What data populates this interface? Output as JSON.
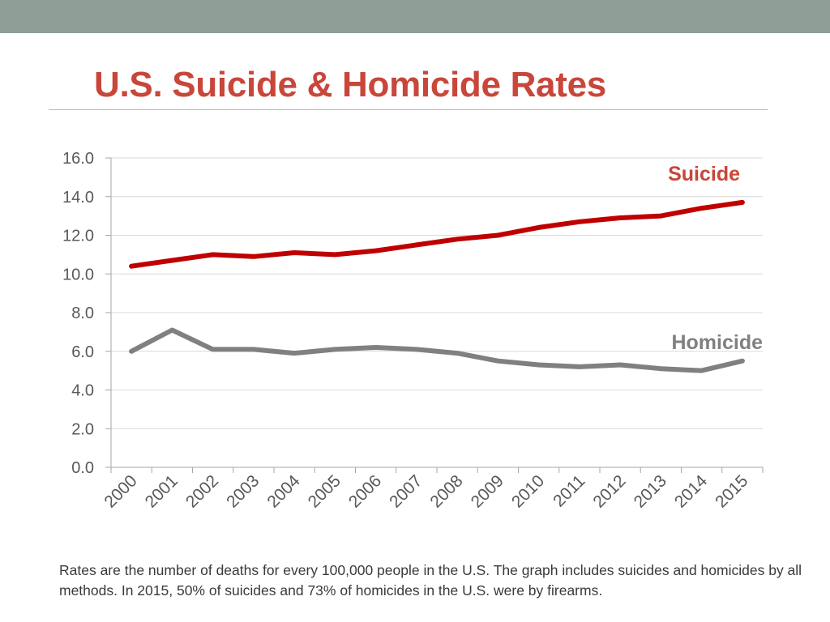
{
  "slide": {
    "title": "U.S. Suicide & Homicide Rates",
    "footnote": "Rates are the number of deaths for every 100,000 people in the U.S. The graph includes suicides and homicides by all methods. In 2015, 50% of suicides and 73% of homicides in the U.S. were by firearms."
  },
  "colors": {
    "top_bar": "#8f9e97",
    "title": "#c8463a",
    "suicide": "#c00000",
    "homicide": "#808080",
    "grid": "#d9d9d9",
    "axis": "#a6a6a6",
    "tick_text": "#595959"
  },
  "chart_data": {
    "type": "line",
    "title": "",
    "xlabel": "",
    "ylabel": "",
    "ylim": [
      0,
      16
    ],
    "y_ticks": [
      "0.0",
      "2.0",
      "4.0",
      "6.0",
      "8.0",
      "10.0",
      "12.0",
      "14.0",
      "16.0"
    ],
    "grid": true,
    "legend": "inline labels at right",
    "categories": [
      "2000",
      "2001",
      "2002",
      "2003",
      "2004",
      "2005",
      "2006",
      "2007",
      "2008",
      "2009",
      "2010",
      "2011",
      "2012",
      "2013",
      "2014",
      "2015"
    ],
    "series": [
      {
        "name": "Suicide",
        "color": "#c00000",
        "values": [
          10.4,
          10.7,
          11.0,
          10.9,
          11.1,
          11.0,
          11.2,
          11.5,
          11.8,
          12.0,
          12.4,
          12.7,
          12.9,
          13.0,
          13.4,
          13.7
        ]
      },
      {
        "name": "Homicide",
        "color": "#808080",
        "values": [
          6.0,
          7.1,
          6.1,
          6.1,
          5.9,
          6.1,
          6.2,
          6.1,
          5.9,
          5.5,
          5.3,
          5.2,
          5.3,
          5.1,
          5.0,
          5.5
        ]
      }
    ]
  }
}
